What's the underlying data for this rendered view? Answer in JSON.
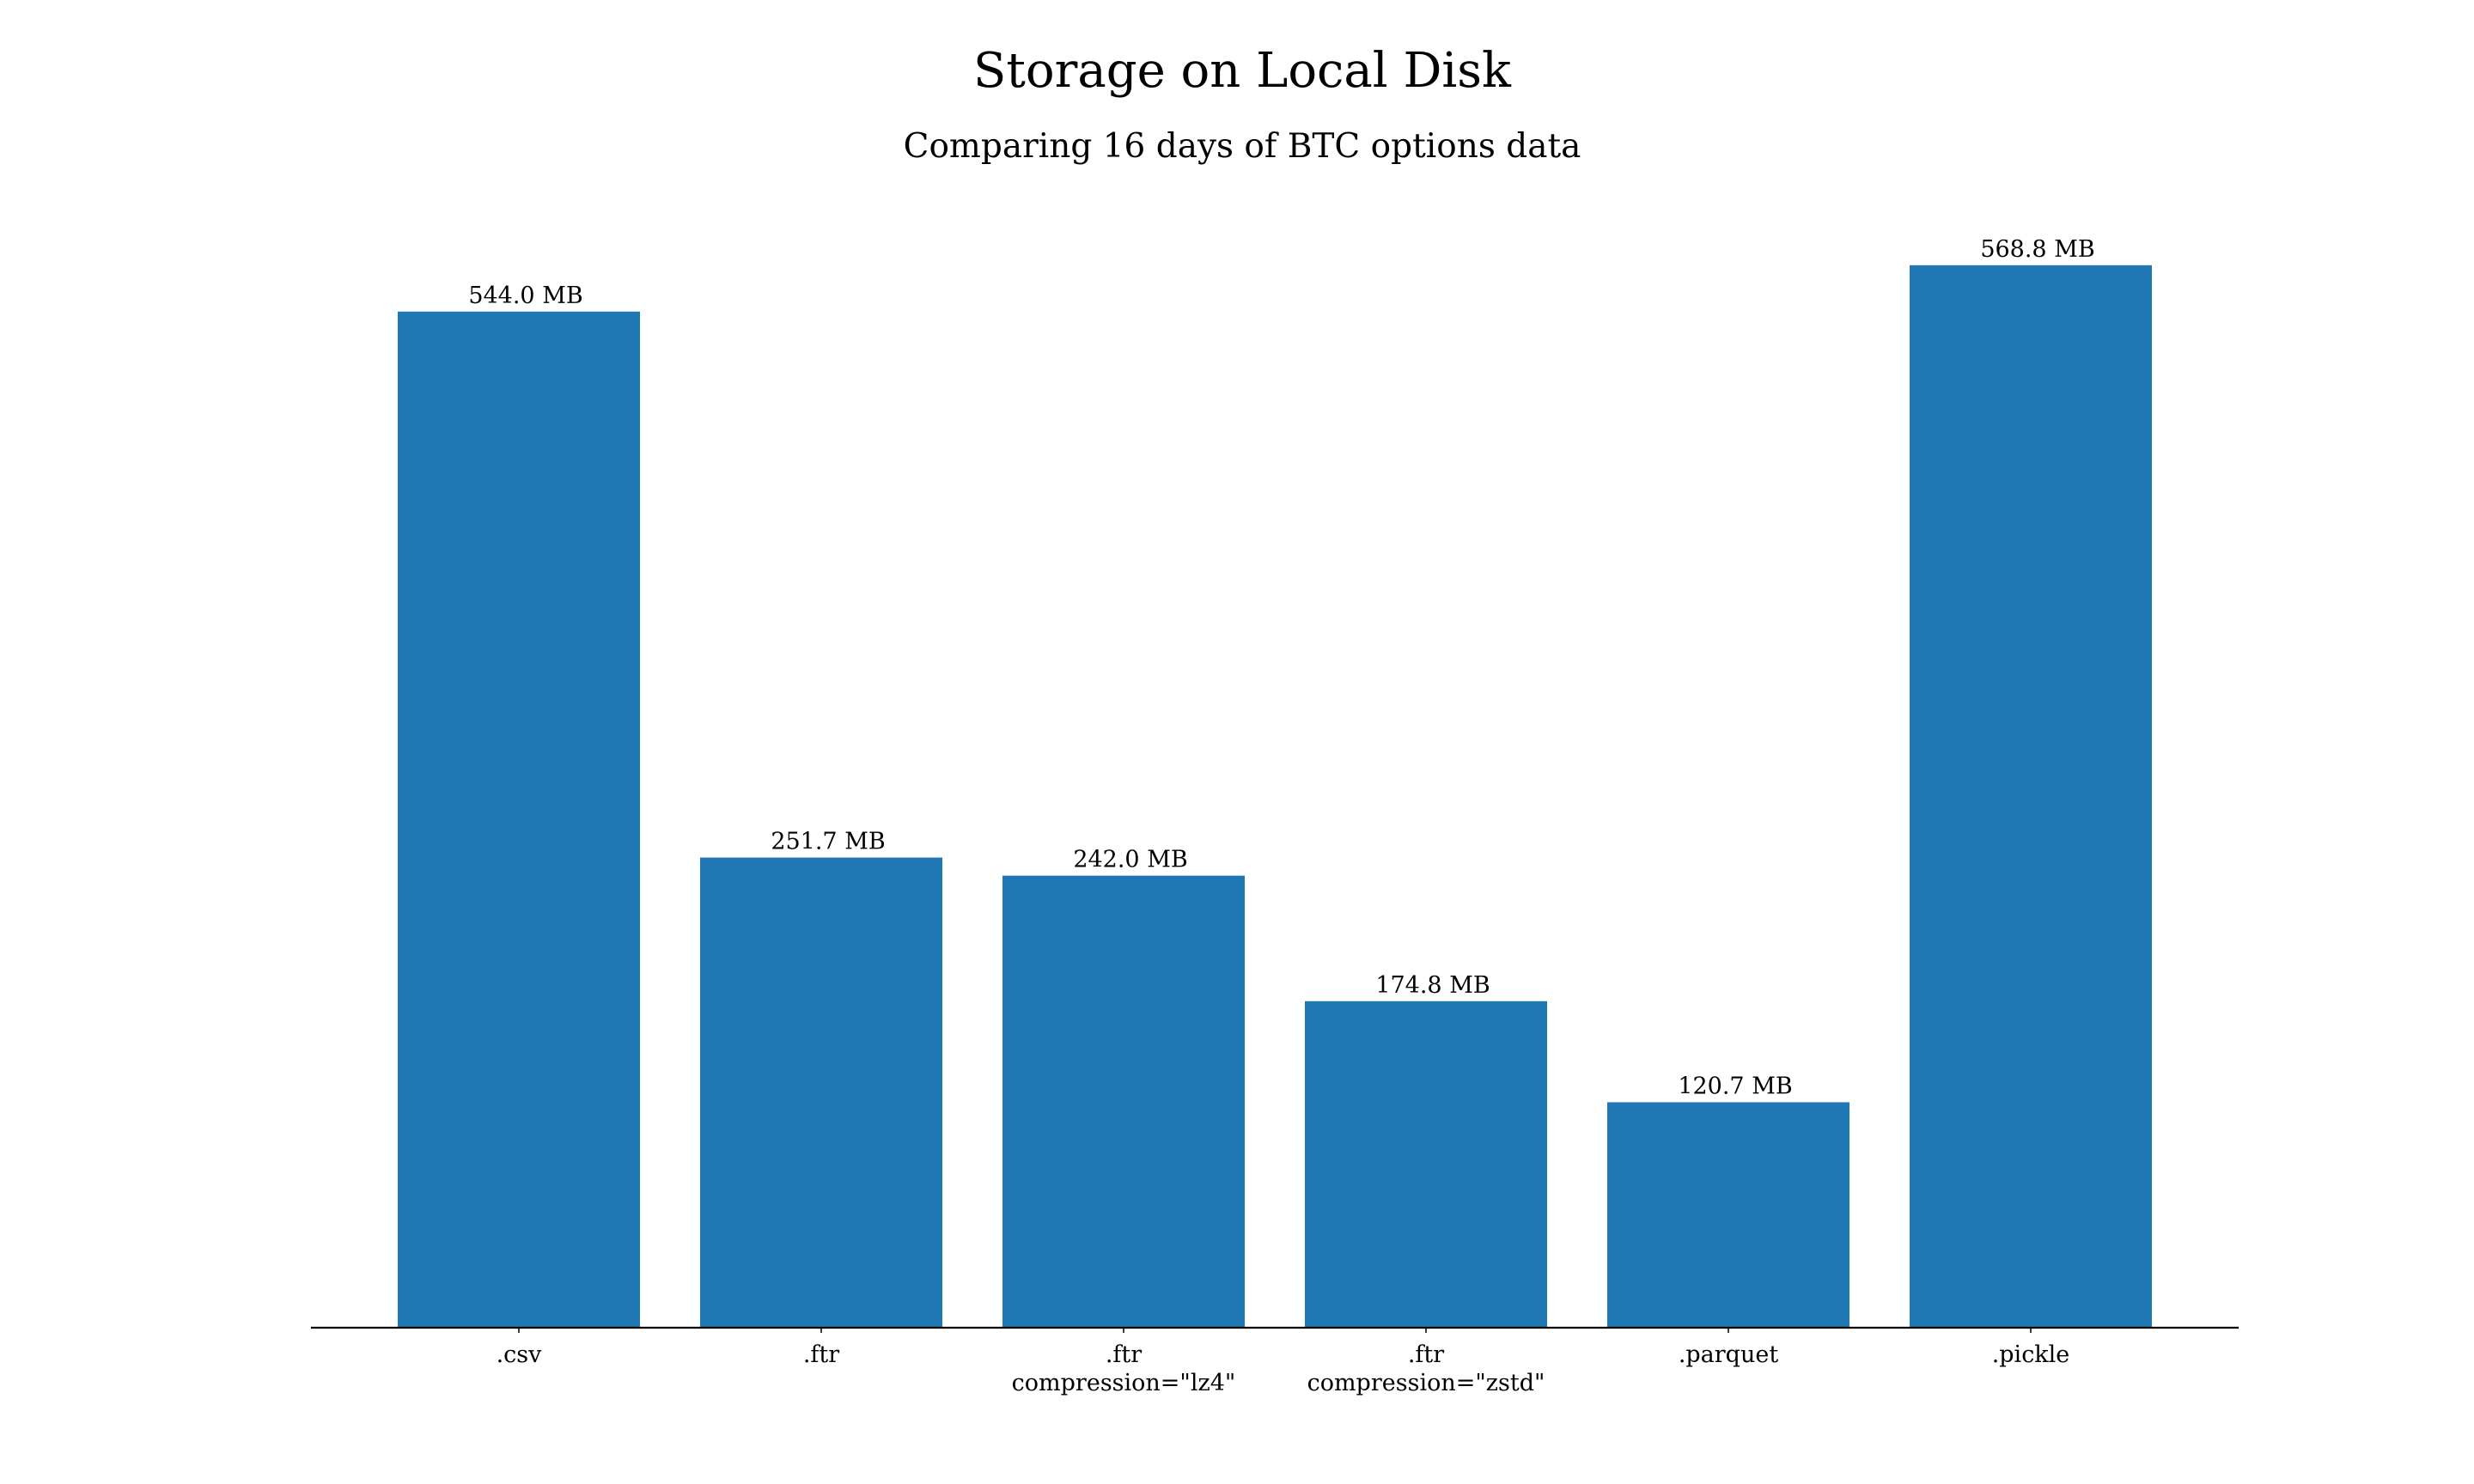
{
  "chart_data": {
    "type": "bar",
    "title": "Storage on Local Disk",
    "subtitle": "Comparing 16 days of BTC options data",
    "categories": [
      [
        ".csv"
      ],
      [
        ".ftr"
      ],
      [
        ".ftr",
        "compression=\"lz4\""
      ],
      [
        ".ftr",
        "compression=\"zstd\""
      ],
      [
        ".parquet"
      ],
      [
        ".pickle"
      ]
    ],
    "values": [
      544.0,
      251.7,
      242.0,
      174.8,
      120.7,
      568.8
    ],
    "data_labels": [
      "544.0 MB",
      "251.7 MB",
      "242.0 MB",
      "174.8 MB",
      "120.7 MB",
      "568.8 MB"
    ],
    "unit": "MB",
    "xlabel": "",
    "ylabel": "",
    "ylim": [
      0,
      597.24
    ],
    "grid": false,
    "legend": "none",
    "bar_color": "#1f77b4"
  }
}
